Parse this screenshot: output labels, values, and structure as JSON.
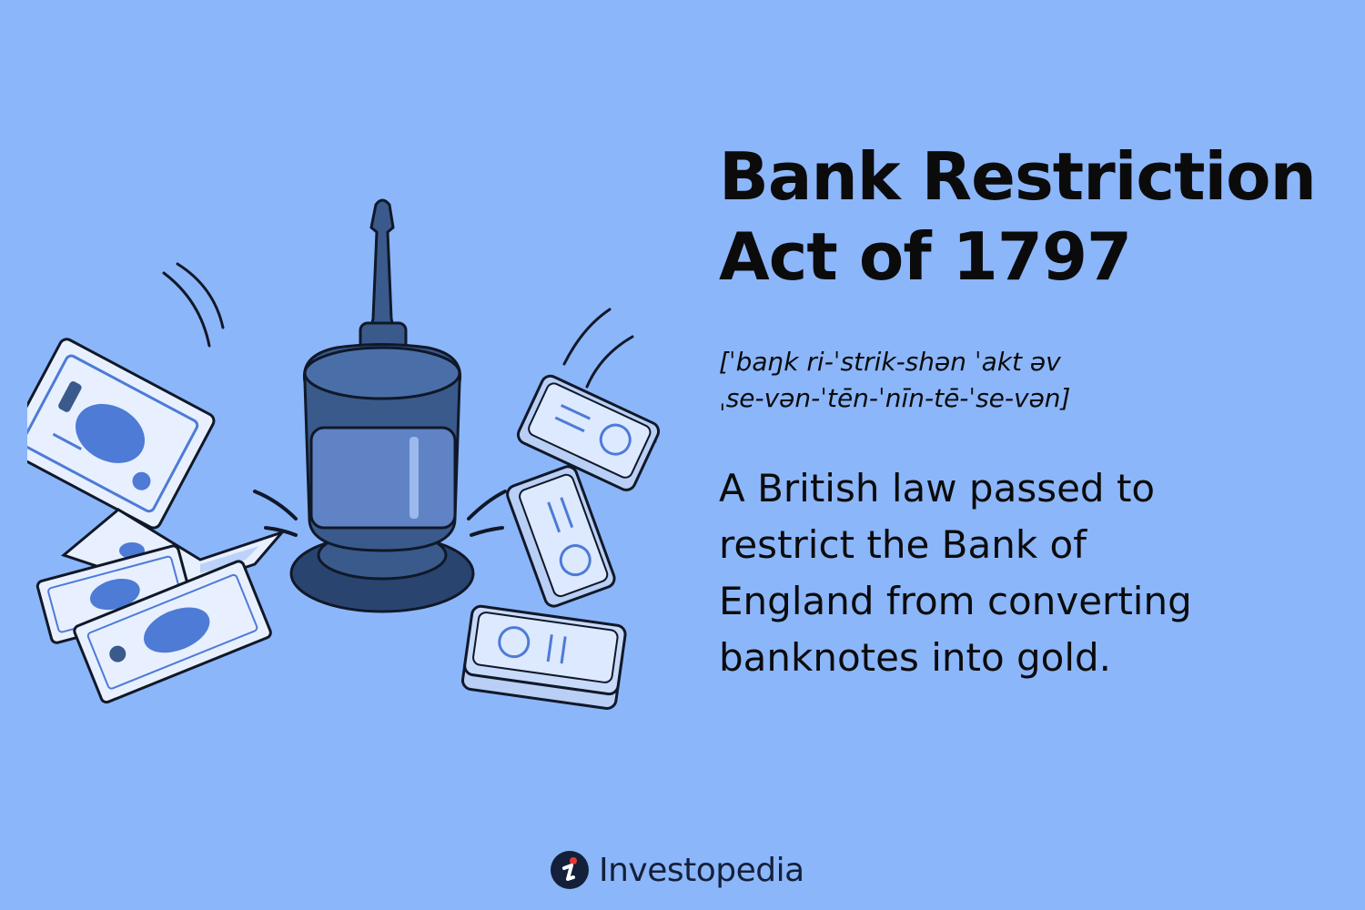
{
  "title": {
    "line1": "Bank Restriction",
    "line2": "Act of 1797"
  },
  "pronunciation": {
    "line1": "[ˈbaŋk ri-ˈstrik-shən ˈakt əv",
    "line2": "ˌse-vən-ˈtēn-ˈnīn-tē-ˈse-vən]"
  },
  "definition": {
    "line1": "A British law passed to",
    "line2": "restrict the Bank of",
    "line3": "England from converting",
    "line4": "banknotes into gold."
  },
  "brand": {
    "name": "Investopedia",
    "logo_icon": "investopedia-logo-icon",
    "accent": "#e53935"
  },
  "illustration": {
    "items": [
      "gavel-icon",
      "banknote-icon",
      "silver-bar-icon"
    ],
    "colors": {
      "background": "#8cb6fa",
      "gavel": "#3a5a8c",
      "gavel_dark": "#2a4470",
      "bill": "#e8f0ff",
      "bill_accent": "#4d7bd6",
      "bar": "#dde9ff",
      "outline": "#101828"
    }
  }
}
